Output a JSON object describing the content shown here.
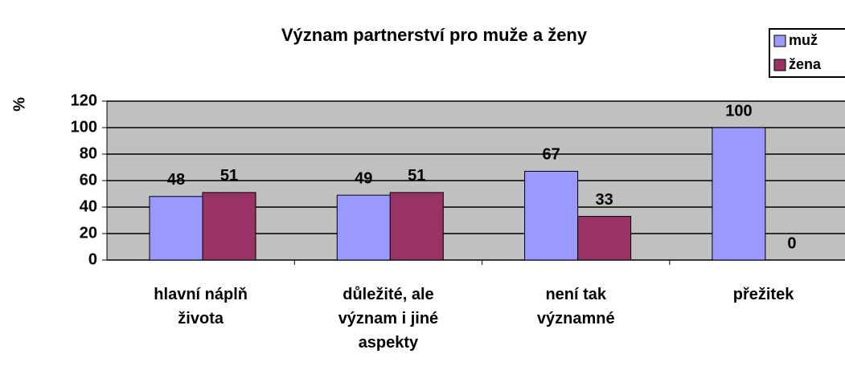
{
  "chart_data": {
    "type": "bar",
    "title": "Význam partnerství pro muže a ženy",
    "y_label": "%",
    "categories": [
      "hlavní náplň života",
      "důležité, ale význam i jiné aspekty",
      "není tak významné",
      "přežitek"
    ],
    "series": [
      {
        "name": "muž",
        "color": "#9999ff",
        "values": [
          48,
          49,
          67,
          100
        ]
      },
      {
        "name": "žena",
        "color": "#993366",
        "values": [
          51,
          51,
          33,
          0
        ]
      }
    ],
    "ylim": [
      0,
      120
    ],
    "yticks": [
      0,
      20,
      40,
      60,
      80,
      100,
      120
    ],
    "grid": true,
    "legend": "top-right"
  }
}
